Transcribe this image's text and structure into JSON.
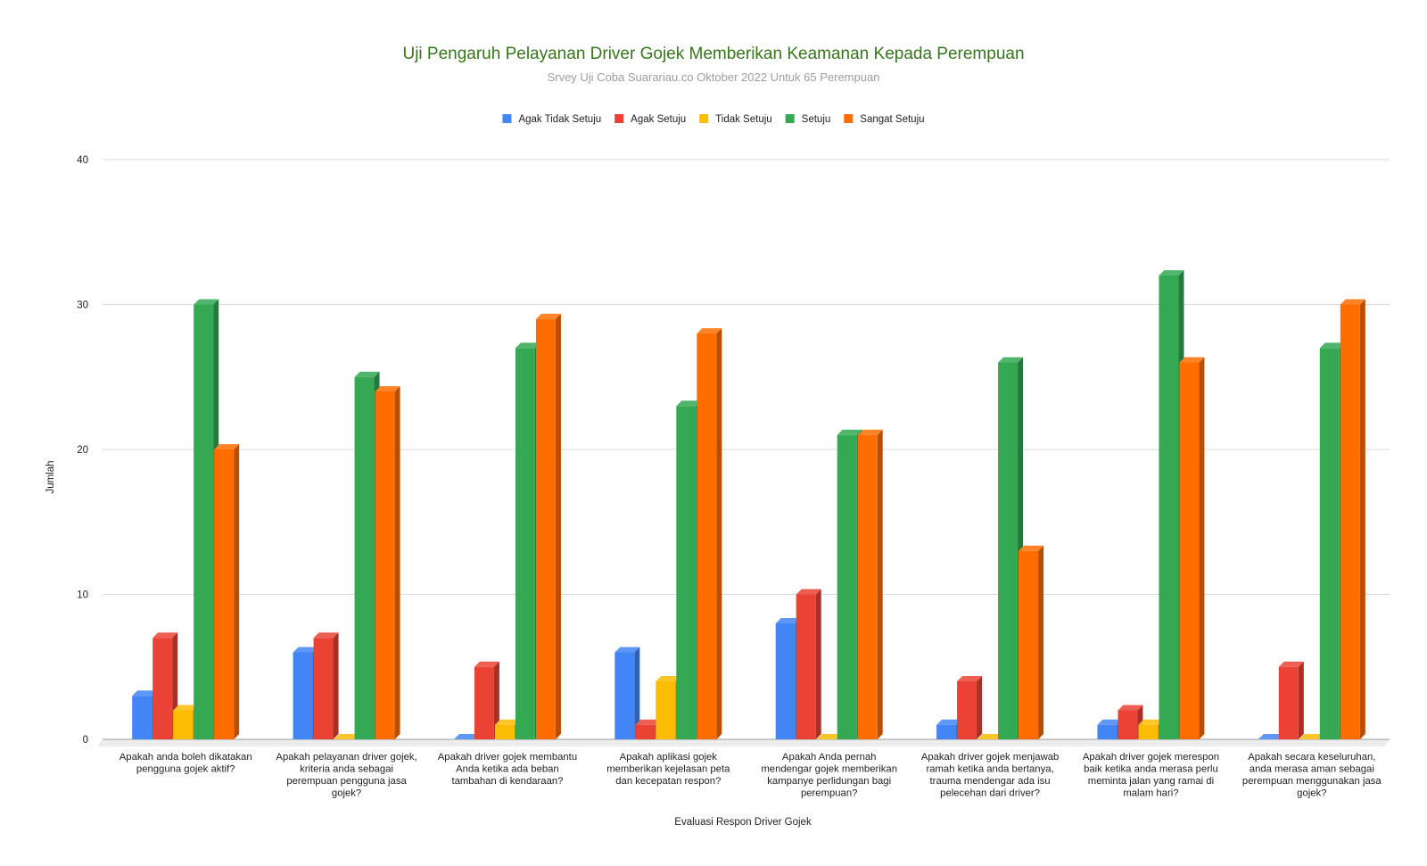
{
  "chart_data": {
    "type": "bar",
    "title": "Uji  Pengaruh Pelayanan Driver Gojek Memberikan Keamanan Kepada Perempuan",
    "subtitle": "Srvey Uji Coba Suarariau.co Oktober 2022 Untuk  65 Perempuan",
    "xlabel": "Evaluasi  Respon Driver Gojek",
    "ylabel": "Jumlah",
    "ylim": [
      0,
      40
    ],
    "yticks": [
      "0",
      "10",
      "20",
      "30",
      "40"
    ],
    "grid": true,
    "legend_position": "top",
    "categories": [
      [
        "Apakah anda boleh dikatakan",
        "pengguna gojek aktif?"
      ],
      [
        "Apakah pelayanan driver gojek,",
        "kriteria anda sebagai",
        "perempuan pengguna jasa",
        "gojek?"
      ],
      [
        "Apakah driver gojek membantu",
        "Anda ketika ada beban",
        "tambahan di kendaraan?"
      ],
      [
        "Apakah aplikasi gojek",
        "memberikan kejelasan peta",
        "dan kecepatan respon?"
      ],
      [
        "Apakah Anda pernah",
        "mendengar gojek memberikan",
        "kampanye perlidungan bagi",
        "perempuan?"
      ],
      [
        "Apakah driver gojek menjawab",
        "ramah ketika anda bertanya,",
        "trauma mendengar ada isu",
        "pelecehan dari driver?"
      ],
      [
        "Apakah driver gojek merespon",
        "baik ketika anda merasa perlu",
        "meminta jalan yang ramai di",
        "malam hari?"
      ],
      [
        "Apakah secara keseluruhan,",
        "anda merasa aman sebagai",
        "perempuan menggunakan jasa",
        "gojek?"
      ]
    ],
    "series": [
      {
        "name": "Agak Tidak Setuju",
        "color": "#4285f4",
        "values": [
          3,
          6,
          0,
          6,
          8,
          1,
          1,
          0
        ]
      },
      {
        "name": "Agak Setuju",
        "color": "#ea4335",
        "values": [
          7,
          7,
          5,
          1,
          10,
          4,
          2,
          5
        ]
      },
      {
        "name": "Tidak Setuju",
        "color": "#fbbc04",
        "values": [
          2,
          0,
          1,
          4,
          0,
          0,
          1,
          0
        ]
      },
      {
        "name": "Setuju",
        "color": "#34a853",
        "values": [
          30,
          25,
          27,
          23,
          21,
          26,
          32,
          27
        ]
      },
      {
        "name": "Sangat Setuju",
        "color": "#ff6d01",
        "values": [
          20,
          24,
          29,
          28,
          21,
          13,
          26,
          30
        ]
      }
    ]
  }
}
